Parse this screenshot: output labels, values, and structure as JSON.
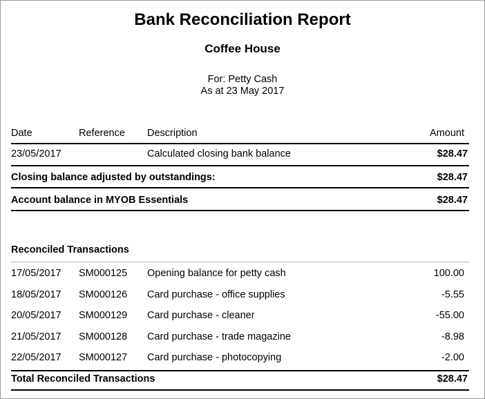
{
  "report": {
    "title": "Bank Reconciliation Report",
    "company": "Coffee House",
    "for_line": "For: Petty Cash",
    "as_at_line": "As at 23 May 2017"
  },
  "columns": {
    "date": "Date",
    "reference": "Reference",
    "description": "Description",
    "amount": "Amount"
  },
  "closing": {
    "date": "23/05/2017",
    "description": "Calculated closing bank balance",
    "amount": "$28.47"
  },
  "adjusted": {
    "label": "Closing balance adjusted by outstandings:",
    "amount": "$28.47"
  },
  "account": {
    "label": "Account balance in MYOB Essentials",
    "amount": "$28.47"
  },
  "reconciled": {
    "heading": "Reconciled Transactions",
    "rows": [
      {
        "date": "17/05/2017",
        "reference": "SM000125",
        "description": "Opening balance for petty cash",
        "amount": "100.00"
      },
      {
        "date": "18/05/2017",
        "reference": "SM000126",
        "description": "Card purchase - office supplies",
        "amount": "-5.55"
      },
      {
        "date": "20/05/2017",
        "reference": "SM000129",
        "description": "Card purchase - cleaner",
        "amount": "-55.00"
      },
      {
        "date": "21/05/2017",
        "reference": "SM000128",
        "description": "Card purchase - trade magazine",
        "amount": "-8.98"
      },
      {
        "date": "22/05/2017",
        "reference": "SM000127",
        "description": "Card purchase - photocopying",
        "amount": "-2.00"
      }
    ],
    "total_label": "Total Reconciled Transactions",
    "total_amount": "$28.47"
  }
}
